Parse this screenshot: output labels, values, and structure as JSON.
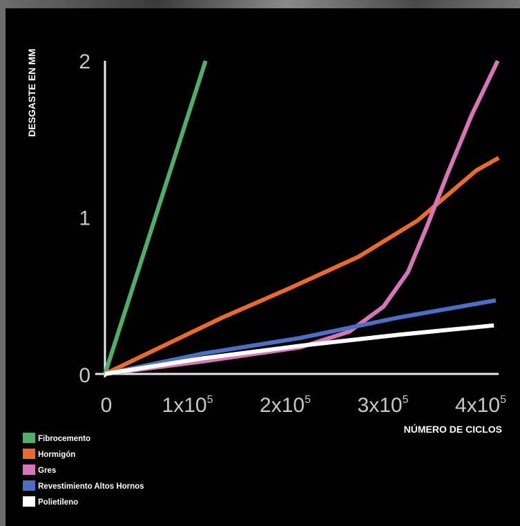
{
  "chart_data": {
    "type": "line",
    "title": "",
    "ylabel": "DESGASTE EN MM",
    "xlabel": "NÚMERO DE CICLOS",
    "xlim": [
      0,
      400000
    ],
    "ylim": [
      0,
      2
    ],
    "x_ticks": [
      {
        "value": 0,
        "base": "0",
        "exp": ""
      },
      {
        "value": 100000,
        "base": "1x10",
        "exp": "5"
      },
      {
        "value": 200000,
        "base": "2x10",
        "exp": "5"
      },
      {
        "value": 300000,
        "base": "3x10",
        "exp": "5"
      },
      {
        "value": 400000,
        "base": "4x10",
        "exp": "5"
      }
    ],
    "y_ticks": [
      {
        "value": 0,
        "label": "0"
      },
      {
        "value": 1,
        "label": "1"
      },
      {
        "value": 2,
        "label": "2"
      }
    ],
    "grid": false,
    "legend_position": "bottom-left",
    "series": [
      {
        "name": "Fibrocemento",
        "color": "#4fae6a",
        "points": [
          [
            0,
            0
          ],
          [
            103000,
            2.0
          ]
        ]
      },
      {
        "name": "Hormigón",
        "color": "#e96a2c",
        "points": [
          [
            0,
            0
          ],
          [
            60000,
            0.18
          ],
          [
            120000,
            0.36
          ],
          [
            190000,
            0.55
          ],
          [
            260000,
            0.75
          ],
          [
            320000,
            0.98
          ],
          [
            380000,
            1.3
          ],
          [
            403000,
            1.38
          ]
        ]
      },
      {
        "name": "Gres",
        "color": "#d775b8",
        "points": [
          [
            0,
            0
          ],
          [
            100000,
            0.08
          ],
          [
            200000,
            0.17
          ],
          [
            250000,
            0.27
          ],
          [
            285000,
            0.43
          ],
          [
            310000,
            0.65
          ],
          [
            330000,
            0.95
          ],
          [
            350000,
            1.27
          ],
          [
            375000,
            1.65
          ],
          [
            402000,
            2.0
          ]
        ]
      },
      {
        "name": "Revestimiento Altos Hornos",
        "color": "#4a6fc4",
        "points": [
          [
            0,
            0
          ],
          [
            100000,
            0.13
          ],
          [
            200000,
            0.23
          ],
          [
            300000,
            0.36
          ],
          [
            400000,
            0.47
          ]
        ]
      },
      {
        "name": "Polietileno",
        "color": "#ffffff",
        "points": [
          [
            0,
            0
          ],
          [
            100000,
            0.1
          ],
          [
            200000,
            0.18
          ],
          [
            300000,
            0.25
          ],
          [
            398000,
            0.31
          ]
        ]
      }
    ]
  }
}
